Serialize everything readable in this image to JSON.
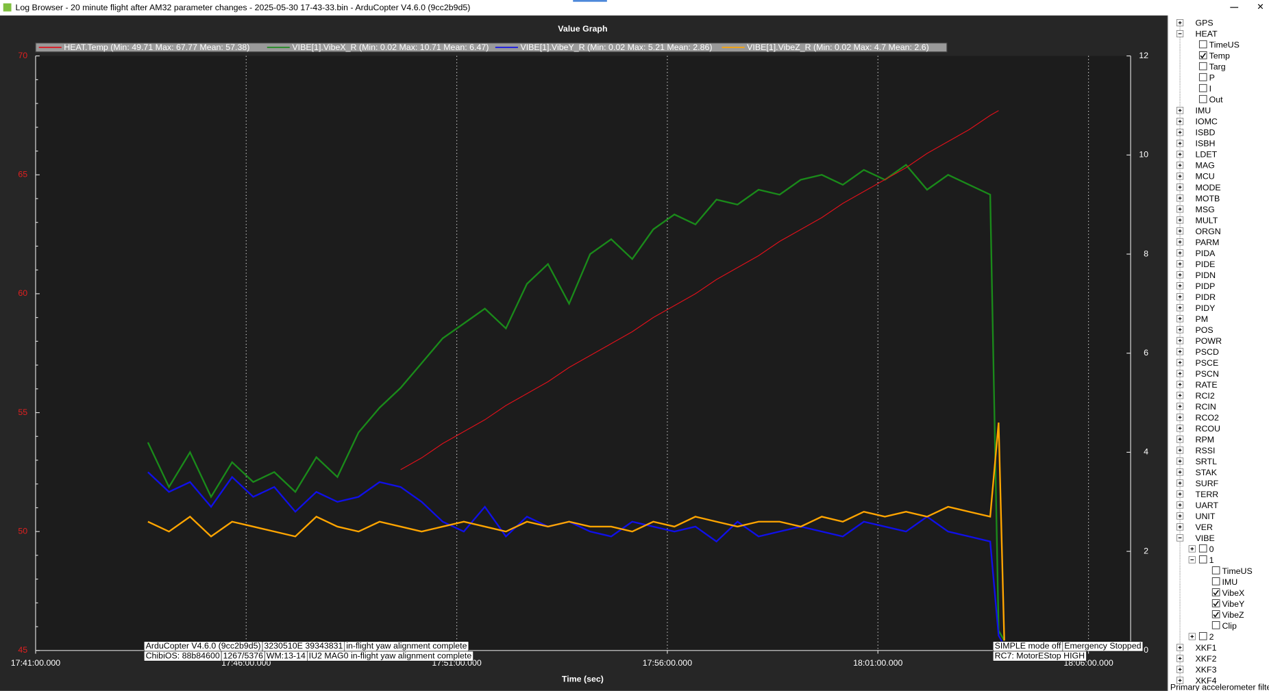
{
  "window_title": "Log Browser - 20 minute flight after AM32 parameter changes - 2025-05-30 17-43-33.bin - ArduCopter V4.6.0 (9cc2b9d5)",
  "chart_data": {
    "type": "line",
    "title": "Value Graph",
    "x_label": "Time (sec)",
    "x": [
      "17:43:40",
      "17:44:10",
      "17:44:40",
      "17:45:10",
      "17:45:40",
      "17:46:10",
      "17:46:40",
      "17:47:10",
      "17:47:40",
      "17:48:10",
      "17:48:40",
      "17:49:10",
      "17:49:40",
      "17:50:10",
      "17:50:40",
      "17:51:10",
      "17:51:40",
      "17:52:10",
      "17:52:40",
      "17:53:10",
      "17:53:40",
      "17:54:10",
      "17:54:40",
      "17:55:10",
      "17:55:40",
      "17:56:10",
      "17:56:40",
      "17:57:10",
      "17:57:40",
      "17:58:10",
      "17:58:40",
      "17:59:10",
      "17:59:40",
      "18:00:10",
      "18:00:40",
      "18:01:10",
      "18:01:40",
      "18:02:10",
      "18:02:40",
      "18:03:10",
      "18:03:40",
      "18:03:52",
      "18:04:00"
    ],
    "xlim": [
      "17:41:00.000",
      "18:07:00.000"
    ],
    "xticks": [
      "17:41:00.000",
      "17:46:00.000",
      "17:51:00.000",
      "17:56:00.000",
      "18:01:00.000",
      "18:06:00.000"
    ],
    "ylim": [
      45,
      70
    ],
    "yticks": [
      45,
      50,
      55,
      60,
      65,
      70
    ],
    "y2lim": [
      0,
      12
    ],
    "y2ticks": [
      0,
      2,
      4,
      6,
      8,
      10,
      12
    ],
    "grid": "x",
    "series": [
      {
        "name": "HEAT.Temp  (Min: 49.71 Max: 67.77 Mean: 57.38)",
        "color": "#e0101a",
        "values": [
          null,
          null,
          null,
          null,
          null,
          null,
          null,
          null,
          null,
          null,
          null,
          null,
          52.6,
          53.1,
          53.7,
          54.2,
          54.7,
          55.3,
          55.8,
          56.3,
          56.9,
          57.4,
          57.9,
          58.4,
          59.0,
          59.5,
          60.0,
          60.6,
          61.1,
          61.6,
          62.2,
          62.7,
          63.2,
          63.8,
          64.3,
          64.8,
          65.3,
          65.9,
          66.4,
          66.9,
          67.5,
          67.7,
          null
        ]
      },
      {
        "name": "VIBE[1].VibeX_R (Min: 0.02 Max: 10.71 Mean: 6.47)",
        "color": "#1a8a1a",
        "axis": "y2",
        "values": [
          4.2,
          3.3,
          4.0,
          3.1,
          3.8,
          3.4,
          3.6,
          3.2,
          3.9,
          3.5,
          4.4,
          4.9,
          5.3,
          5.8,
          6.3,
          6.6,
          6.9,
          6.5,
          7.4,
          7.8,
          7.0,
          8.0,
          8.3,
          7.9,
          8.5,
          8.8,
          8.6,
          9.1,
          9.0,
          9.3,
          9.2,
          9.5,
          9.6,
          9.4,
          9.7,
          9.5,
          9.8,
          9.3,
          9.6,
          9.4,
          9.2,
          0.4,
          0.2
        ]
      },
      {
        "name": "VIBE[1].VibeY_R (Min: 0.02 Max: 5.21 Mean: 2.86)",
        "color": "#1010e8",
        "axis": "y2",
        "values": [
          3.6,
          3.2,
          3.4,
          2.9,
          3.5,
          3.1,
          3.3,
          2.8,
          3.2,
          3.0,
          3.1,
          3.4,
          3.3,
          3.0,
          2.6,
          2.4,
          2.9,
          2.3,
          2.7,
          2.5,
          2.6,
          2.4,
          2.3,
          2.6,
          2.5,
          2.4,
          2.5,
          2.2,
          2.6,
          2.3,
          2.4,
          2.5,
          2.4,
          2.3,
          2.6,
          2.5,
          2.4,
          2.7,
          2.4,
          2.3,
          2.2,
          0.3,
          0.1
        ]
      },
      {
        "name": "VIBE[1].VibeZ_R (Min: 0.02 Max: 4.7 Mean: 2.6)",
        "color": "#ffa500",
        "axis": "y2",
        "values": [
          2.6,
          2.4,
          2.7,
          2.3,
          2.6,
          2.5,
          2.4,
          2.3,
          2.7,
          2.5,
          2.4,
          2.6,
          2.5,
          2.4,
          2.5,
          2.6,
          2.5,
          2.4,
          2.6,
          2.5,
          2.6,
          2.5,
          2.5,
          2.4,
          2.6,
          2.5,
          2.7,
          2.6,
          2.5,
          2.6,
          2.6,
          2.5,
          2.7,
          2.6,
          2.8,
          2.7,
          2.8,
          2.7,
          2.9,
          2.8,
          2.7,
          4.6,
          0.2
        ]
      }
    ],
    "annotations": [
      "ArduCopter V4.6.0 (9cc2b9d5)",
      "3230510E 39343831",
      "in-flight yaw alignment complete",
      "ChibiOS: 88b84600",
      "1267/5376",
      "WM:13-14",
      "IU2 MAG0 in-flight yaw alignment complete",
      "SIMPLE mode off",
      "Emergency Stopped",
      "RC7: MotorEStop HIGH"
    ]
  },
  "tree": [
    {
      "label": "GPS",
      "depth": 0,
      "expanded": false
    },
    {
      "label": "HEAT",
      "depth": 0,
      "expanded": true
    },
    {
      "label": "TimeUS",
      "depth": 1,
      "checked": false
    },
    {
      "label": "Temp",
      "depth": 1,
      "checked": true
    },
    {
      "label": "Targ",
      "depth": 1,
      "checked": false
    },
    {
      "label": "P",
      "depth": 1,
      "checked": false
    },
    {
      "label": "I",
      "depth": 1,
      "checked": false
    },
    {
      "label": "Out",
      "depth": 1,
      "checked": false
    },
    {
      "label": "IMU",
      "depth": 0,
      "expanded": false
    },
    {
      "label": "IOMC",
      "depth": 0,
      "expanded": false
    },
    {
      "label": "ISBD",
      "depth": 0,
      "expanded": false
    },
    {
      "label": "ISBH",
      "depth": 0,
      "expanded": false
    },
    {
      "label": "LDET",
      "depth": 0,
      "expanded": false
    },
    {
      "label": "MAG",
      "depth": 0,
      "expanded": false
    },
    {
      "label": "MCU",
      "depth": 0,
      "expanded": false
    },
    {
      "label": "MODE",
      "depth": 0,
      "expanded": false
    },
    {
      "label": "MOTB",
      "depth": 0,
      "expanded": false
    },
    {
      "label": "MSG",
      "depth": 0,
      "expanded": false
    },
    {
      "label": "MULT",
      "depth": 0,
      "expanded": false
    },
    {
      "label": "ORGN",
      "depth": 0,
      "expanded": false
    },
    {
      "label": "PARM",
      "depth": 0,
      "expanded": false
    },
    {
      "label": "PIDA",
      "depth": 0,
      "expanded": false
    },
    {
      "label": "PIDE",
      "depth": 0,
      "expanded": false
    },
    {
      "label": "PIDN",
      "depth": 0,
      "expanded": false
    },
    {
      "label": "PIDP",
      "depth": 0,
      "expanded": false
    },
    {
      "label": "PIDR",
      "depth": 0,
      "expanded": false
    },
    {
      "label": "PIDY",
      "depth": 0,
      "expanded": false
    },
    {
      "label": "PM",
      "depth": 0,
      "expanded": false
    },
    {
      "label": "POS",
      "depth": 0,
      "expanded": false
    },
    {
      "label": "POWR",
      "depth": 0,
      "expanded": false
    },
    {
      "label": "PSCD",
      "depth": 0,
      "expanded": false
    },
    {
      "label": "PSCE",
      "depth": 0,
      "expanded": false
    },
    {
      "label": "PSCN",
      "depth": 0,
      "expanded": false
    },
    {
      "label": "RATE",
      "depth": 0,
      "expanded": false
    },
    {
      "label": "RCI2",
      "depth": 0,
      "expanded": false
    },
    {
      "label": "RCIN",
      "depth": 0,
      "expanded": false
    },
    {
      "label": "RCO2",
      "depth": 0,
      "expanded": false
    },
    {
      "label": "RCOU",
      "depth": 0,
      "expanded": false
    },
    {
      "label": "RPM",
      "depth": 0,
      "expanded": false
    },
    {
      "label": "RSSI",
      "depth": 0,
      "expanded": false
    },
    {
      "label": "SRTL",
      "depth": 0,
      "expanded": false
    },
    {
      "label": "STAK",
      "depth": 0,
      "expanded": false
    },
    {
      "label": "SURF",
      "depth": 0,
      "expanded": false
    },
    {
      "label": "TERR",
      "depth": 0,
      "expanded": false
    },
    {
      "label": "UART",
      "depth": 0,
      "expanded": false
    },
    {
      "label": "UNIT",
      "depth": 0,
      "expanded": false
    },
    {
      "label": "VER",
      "depth": 0,
      "expanded": false
    },
    {
      "label": "VIBE",
      "depth": 0,
      "expanded": true
    },
    {
      "label": "0",
      "depth": 1,
      "expanded": false
    },
    {
      "label": "1",
      "depth": 1,
      "expanded": true
    },
    {
      "label": "TimeUS",
      "depth": 2,
      "checked": false
    },
    {
      "label": "IMU",
      "depth": 2,
      "checked": false
    },
    {
      "label": "VibeX",
      "depth": 2,
      "checked": true
    },
    {
      "label": "VibeY",
      "depth": 2,
      "checked": true
    },
    {
      "label": "VibeZ",
      "depth": 2,
      "checked": true
    },
    {
      "label": "Clip",
      "depth": 2,
      "checked": false
    },
    {
      "label": "2",
      "depth": 1,
      "expanded": false
    },
    {
      "label": "XKF1",
      "depth": 0,
      "expanded": false
    },
    {
      "label": "XKF2",
      "depth": 0,
      "expanded": false
    },
    {
      "label": "XKF3",
      "depth": 0,
      "expanded": false
    },
    {
      "label": "XKF4",
      "depth": 0,
      "expanded": false
    }
  ],
  "status_text": "Primary accelerometer filtered v"
}
